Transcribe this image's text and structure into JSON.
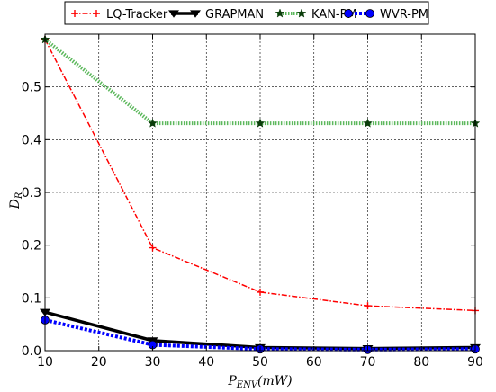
{
  "chart_data": {
    "type": "line",
    "xlabel": "P_ENV(mW)",
    "ylabel": "D_R",
    "xlim": [
      10,
      90
    ],
    "ylim": [
      0,
      0.6
    ],
    "xticks": [
      10,
      20,
      30,
      40,
      50,
      60,
      70,
      80,
      90
    ],
    "yticks": [
      0.0,
      0.1,
      0.2,
      0.3,
      0.4,
      0.5
    ],
    "ytick_labels": [
      "0.0",
      "0.1",
      "0.2",
      "0.3",
      "0.4",
      "0.5"
    ],
    "grid": true,
    "legend_position": "top",
    "x": [
      10,
      30,
      50,
      70,
      90
    ],
    "series": [
      {
        "name": "LQ-Tracker",
        "color": "#ff0000",
        "marker": "plus",
        "line": "dashdot",
        "values": [
          0.59,
          0.195,
          0.111,
          0.085,
          0.076
        ]
      },
      {
        "name": "GRAPMAN",
        "color": "#000000",
        "marker": "triangle-down",
        "line": "solid",
        "values": [
          0.073,
          0.019,
          0.006,
          0.004,
          0.006
        ]
      },
      {
        "name": "KAN-PM",
        "color": "#5cb85c",
        "marker": "star",
        "line": "dotted",
        "values": [
          0.59,
          0.431,
          0.431,
          0.431,
          0.431
        ]
      },
      {
        "name": "WVR-PM",
        "color": "#0000ff",
        "marker": "circle",
        "line": "dashed",
        "values": [
          0.058,
          0.011,
          0.003,
          0.002,
          0.003
        ]
      }
    ]
  }
}
